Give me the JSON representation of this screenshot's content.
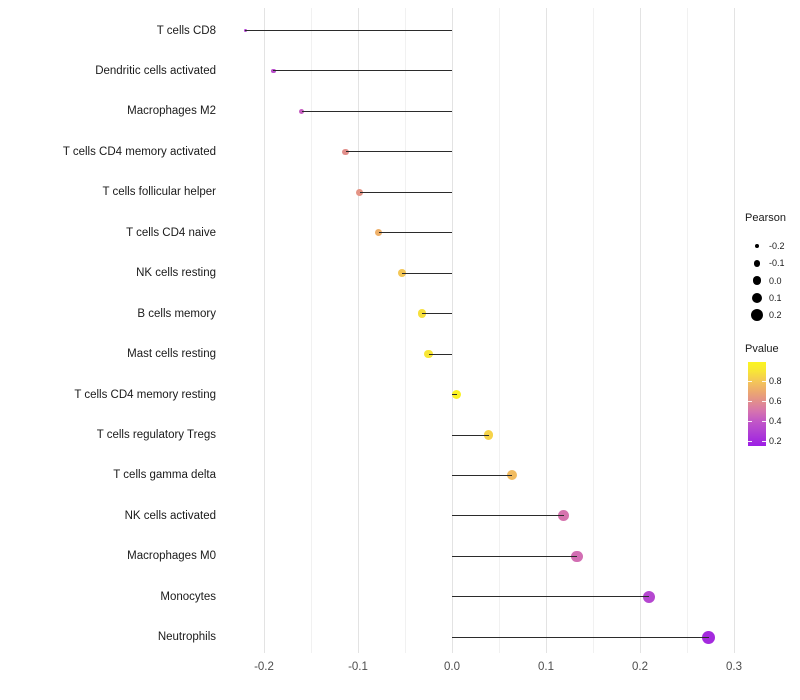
{
  "chart_data": {
    "type": "scatter",
    "variant": "lollipop",
    "title": "",
    "xlabel": "",
    "ylabel": "",
    "grid": "vertical-only",
    "baseline": 0.0,
    "xlim": [
      -0.245,
      0.305
    ],
    "x_ticks": {
      "values": [
        -0.2,
        -0.1,
        0.0,
        0.1,
        0.2,
        0.3
      ],
      "labels": [
        "-0.2",
        "-0.1",
        "0.0",
        "0.1",
        "0.2",
        "0.3"
      ]
    },
    "x_minor_ticks": [
      -0.15,
      -0.05,
      0.05,
      0.15,
      0.25
    ],
    "points": [
      {
        "label": "T cells CD8",
        "pearson": -0.22,
        "pvalue": 0.3
      },
      {
        "label": "Dendritic cells activated",
        "pearson": -0.19,
        "pvalue": 0.35
      },
      {
        "label": "Macrophages M2",
        "pearson": -0.16,
        "pvalue": 0.42
      },
      {
        "label": "T cells CD4 memory activated",
        "pearson": -0.113,
        "pvalue": 0.6
      },
      {
        "label": "T cells follicular helper",
        "pearson": -0.098,
        "pvalue": 0.62
      },
      {
        "label": "T cells CD4 naive",
        "pearson": -0.078,
        "pvalue": 0.72
      },
      {
        "label": "NK cells resting",
        "pearson": -0.053,
        "pvalue": 0.8
      },
      {
        "label": "B cells memory",
        "pearson": -0.032,
        "pvalue": 0.88
      },
      {
        "label": "Mast cells resting",
        "pearson": -0.025,
        "pvalue": 0.9
      },
      {
        "label": "T cells CD4 memory resting",
        "pearson": 0.005,
        "pvalue": 0.97
      },
      {
        "label": "T cells regulatory  Tregs",
        "pearson": 0.039,
        "pvalue": 0.84
      },
      {
        "label": "T cells gamma delta",
        "pearson": 0.064,
        "pvalue": 0.76
      },
      {
        "label": "NK cells activated",
        "pearson": 0.119,
        "pvalue": 0.5
      },
      {
        "label": "Macrophages M0",
        "pearson": 0.133,
        "pvalue": 0.48
      },
      {
        "label": "Monocytes",
        "pearson": 0.21,
        "pvalue": 0.32
      },
      {
        "label": "Neutrophils",
        "pearson": 0.273,
        "pvalue": 0.2
      }
    ],
    "legend": {
      "size": {
        "title": "Pearson",
        "tick_values": [
          -0.2,
          -0.1,
          0.0,
          0.1,
          0.2
        ],
        "tick_labels": [
          "-0.2",
          "-0.1",
          "0.0",
          "0.1",
          "0.2"
        ],
        "dot_color": "#000000"
      },
      "color": {
        "title": "Pvalue",
        "tick_values": [
          0.8,
          0.6,
          0.4,
          0.2
        ],
        "tick_labels": [
          "0.8",
          "0.6",
          "0.4",
          "0.2"
        ],
        "range_min": 0.15,
        "range_max": 0.99,
        "gradient_stops": [
          {
            "p": 0.15,
            "color": "#9c1fe6"
          },
          {
            "p": 0.2,
            "color": "#a42ade"
          },
          {
            "p": 0.3,
            "color": "#b243d2"
          },
          {
            "p": 0.4,
            "color": "#c258c6"
          },
          {
            "p": 0.5,
            "color": "#d674ae"
          },
          {
            "p": 0.6,
            "color": "#e28f8b"
          },
          {
            "p": 0.7,
            "color": "#edaa6e"
          },
          {
            "p": 0.8,
            "color": "#f4c757"
          },
          {
            "p": 0.9,
            "color": "#f8e636"
          },
          {
            "p": 0.99,
            "color": "#fbf520"
          }
        ]
      }
    },
    "colors": {
      "stem": "#2b2b2b",
      "grid_major": "#e3e3e3",
      "grid_minor": "#f1f1f1",
      "axis_text": "#4d4d4d",
      "label_text": "#1a1a1a",
      "background": "#ffffff"
    }
  }
}
